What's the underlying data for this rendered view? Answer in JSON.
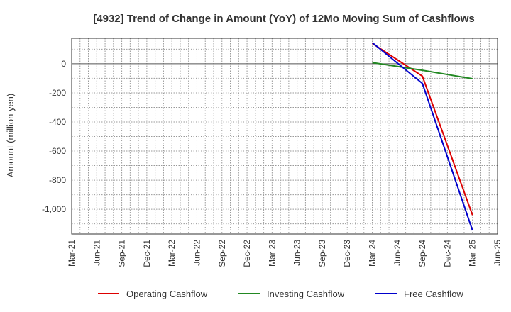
{
  "chart_data": {
    "type": "line",
    "title": "[4932]  Trend of Change in Amount (YoY) of 12Mo Moving Sum of Cashflows",
    "xlabel": "",
    "ylabel": "Amount (million yen)",
    "x_ticks": [
      "Mar-21",
      "Jun-21",
      "Sep-21",
      "Dec-21",
      "Mar-22",
      "Jun-22",
      "Sep-22",
      "Dec-22",
      "Mar-23",
      "Jun-23",
      "Sep-23",
      "Dec-23",
      "Mar-24",
      "Jun-24",
      "Sep-24",
      "Dec-24",
      "Mar-25",
      "Jun-25"
    ],
    "y_ticks": [
      0,
      -200,
      -400,
      -600,
      -800,
      -1000
    ],
    "y_tick_labels": [
      "0",
      "-200",
      "-400",
      "-600",
      "-800",
      "-1,000"
    ],
    "ylim": [
      -1170,
      175
    ],
    "grid": true,
    "legend_position": "bottom",
    "series": [
      {
        "name": "Operating Cashflow",
        "color": "#dd0000",
        "x": [
          "Mar-24",
          "Sep-24",
          "Mar-25"
        ],
        "values": [
          140,
          -85,
          -1040
        ]
      },
      {
        "name": "Investing Cashflow",
        "color": "#228822",
        "x": [
          "Mar-24",
          "Sep-24",
          "Mar-25"
        ],
        "values": [
          8,
          -45,
          -103
        ]
      },
      {
        "name": "Free Cashflow",
        "color": "#0000cc",
        "x": [
          "Mar-24",
          "Sep-24",
          "Mar-25"
        ],
        "values": [
          145,
          -135,
          -1145
        ]
      }
    ]
  }
}
